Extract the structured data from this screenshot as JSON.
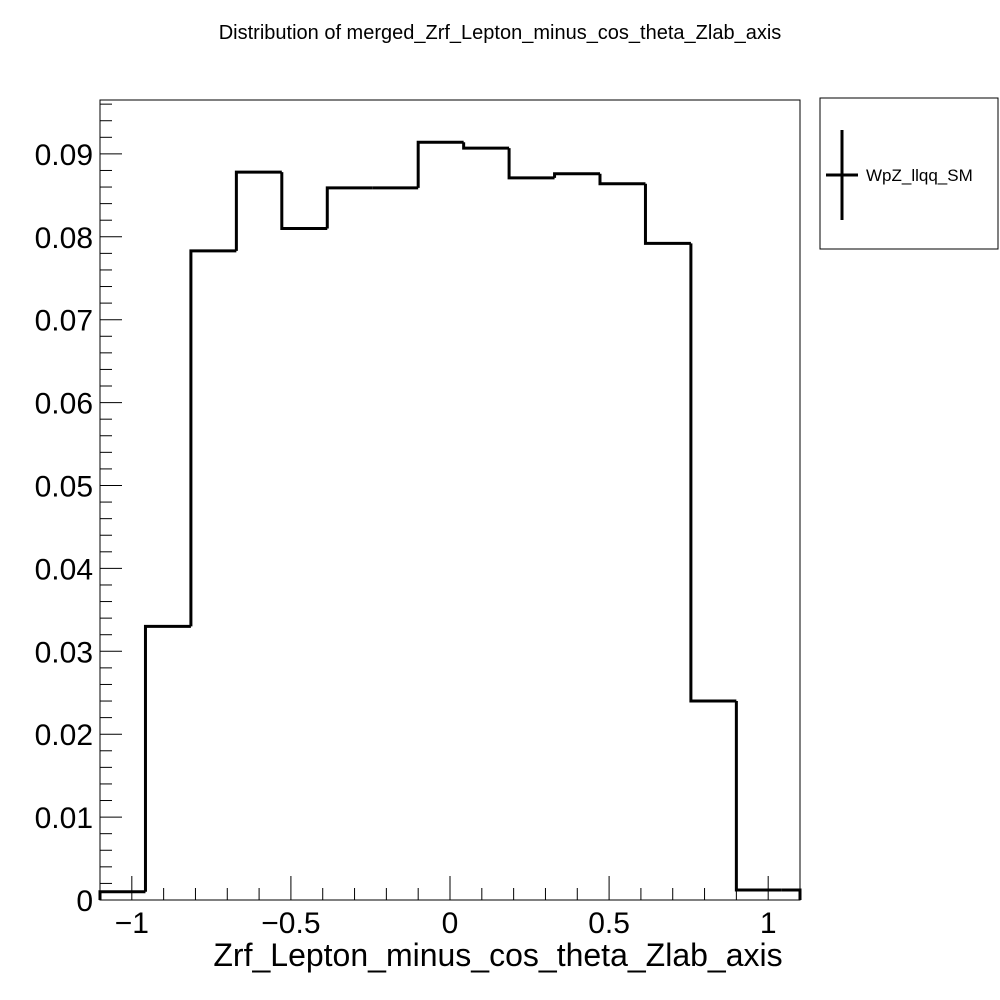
{
  "chart_data": {
    "type": "histogram",
    "title": "Distribution of merged_Zrf_Lepton_minus_cos_theta_Zlab_axis",
    "xlabel": "Zrf_Lepton_minus_cos_theta_Zlab_axis",
    "ylabel": "",
    "xlim": [
      -1.1,
      1.1
    ],
    "ylim": [
      0,
      0.0965
    ],
    "bin_edges": [
      -1.1,
      -0.9571,
      -0.8143,
      -0.6714,
      -0.5286,
      -0.3857,
      -0.2429,
      -0.1,
      0.0429,
      0.1857,
      0.3286,
      0.4714,
      0.6143,
      0.7571,
      0.9,
      1.0429,
      1.1
    ],
    "values": [
      0.001,
      0.033,
      0.0783,
      0.0878,
      0.081,
      0.0859,
      0.0859,
      0.0914,
      0.0907,
      0.0871,
      0.0876,
      0.0864,
      0.0792,
      0.024,
      0.0012,
      0.0012
    ],
    "x_ticks": [
      {
        "value": -1,
        "label": "−1"
      },
      {
        "value": -0.5,
        "label": "−0.5"
      },
      {
        "value": 0,
        "label": "0"
      },
      {
        "value": 0.5,
        "label": "0.5"
      },
      {
        "value": 1,
        "label": "1"
      }
    ],
    "y_ticks": [
      {
        "value": 0,
        "label": "0"
      },
      {
        "value": 0.01,
        "label": "0.01"
      },
      {
        "value": 0.02,
        "label": "0.02"
      },
      {
        "value": 0.03,
        "label": "0.03"
      },
      {
        "value": 0.04,
        "label": "0.04"
      },
      {
        "value": 0.05,
        "label": "0.05"
      },
      {
        "value": 0.06,
        "label": "0.06"
      },
      {
        "value": 0.07,
        "label": "0.07"
      },
      {
        "value": 0.08,
        "label": "0.08"
      },
      {
        "value": 0.09,
        "label": "0.09"
      }
    ],
    "legend": {
      "placement": "top-right outside",
      "entries": [
        {
          "name": "WpZ_llqq_SM",
          "color": "#000000"
        }
      ]
    },
    "grid": false,
    "line_color": "#000000"
  }
}
